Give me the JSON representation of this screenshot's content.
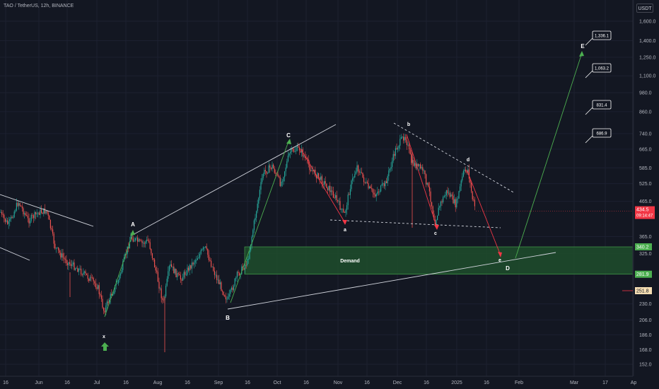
{
  "header": {
    "symbol_title": "TAO / TetherUS, 12h, BINANCE",
    "currency": "USDT"
  },
  "chart_data": {
    "type": "candlestick",
    "price_axis": {
      "scale": "log",
      "ticks": [
        "1,600.0",
        "1,400.0",
        "1,250.0",
        "1,100.0",
        "980.0",
        "860.0",
        "740.0",
        "665.0",
        "585.0",
        "525.0",
        "465.0",
        "365.0",
        "325.0",
        "230.0",
        "206.0",
        "186.0",
        "168.0",
        "152.0"
      ],
      "tick_values": [
        1600,
        1400,
        1250,
        1100,
        980,
        860,
        740,
        665,
        585,
        525,
        465,
        365,
        325,
        230,
        206,
        186,
        168,
        152
      ]
    },
    "time_axis": {
      "ticks": [
        "16",
        "Jun",
        "16",
        "Jul",
        "16",
        "Aug",
        "16",
        "Sep",
        "16",
        "Oct",
        "16",
        "Nov",
        "16",
        "Dec",
        "16",
        "2025",
        "16",
        "Feb",
        "Mar",
        "17",
        "Ap"
      ]
    },
    "price_labels": [
      {
        "text": "434.5",
        "sub": "09:14:47",
        "value": 434.5,
        "color": "#f23645"
      },
      {
        "text": "340.2",
        "value": 340.2,
        "color": "#4caf50"
      },
      {
        "text": "281.9",
        "value": 281.9,
        "color": "#4caf50"
      },
      {
        "text": "251.8",
        "value": 251.8,
        "color": "#f5deb3"
      }
    ],
    "wave_labels": [
      "x",
      "A",
      "B",
      "C",
      "a",
      "b",
      "c",
      "d",
      "e",
      "D",
      "E"
    ],
    "zone": {
      "label": "Demand",
      "top": 340.2,
      "bottom": 281.9
    },
    "targets": [
      "1,336.1",
      "1,063.2",
      "831.4",
      "686.9"
    ],
    "colors": {
      "up": "#26a69a",
      "down": "#ef5350",
      "zone": "#1e4d2b",
      "target_path": "#4caf50",
      "drop_path": "#f23645"
    }
  }
}
